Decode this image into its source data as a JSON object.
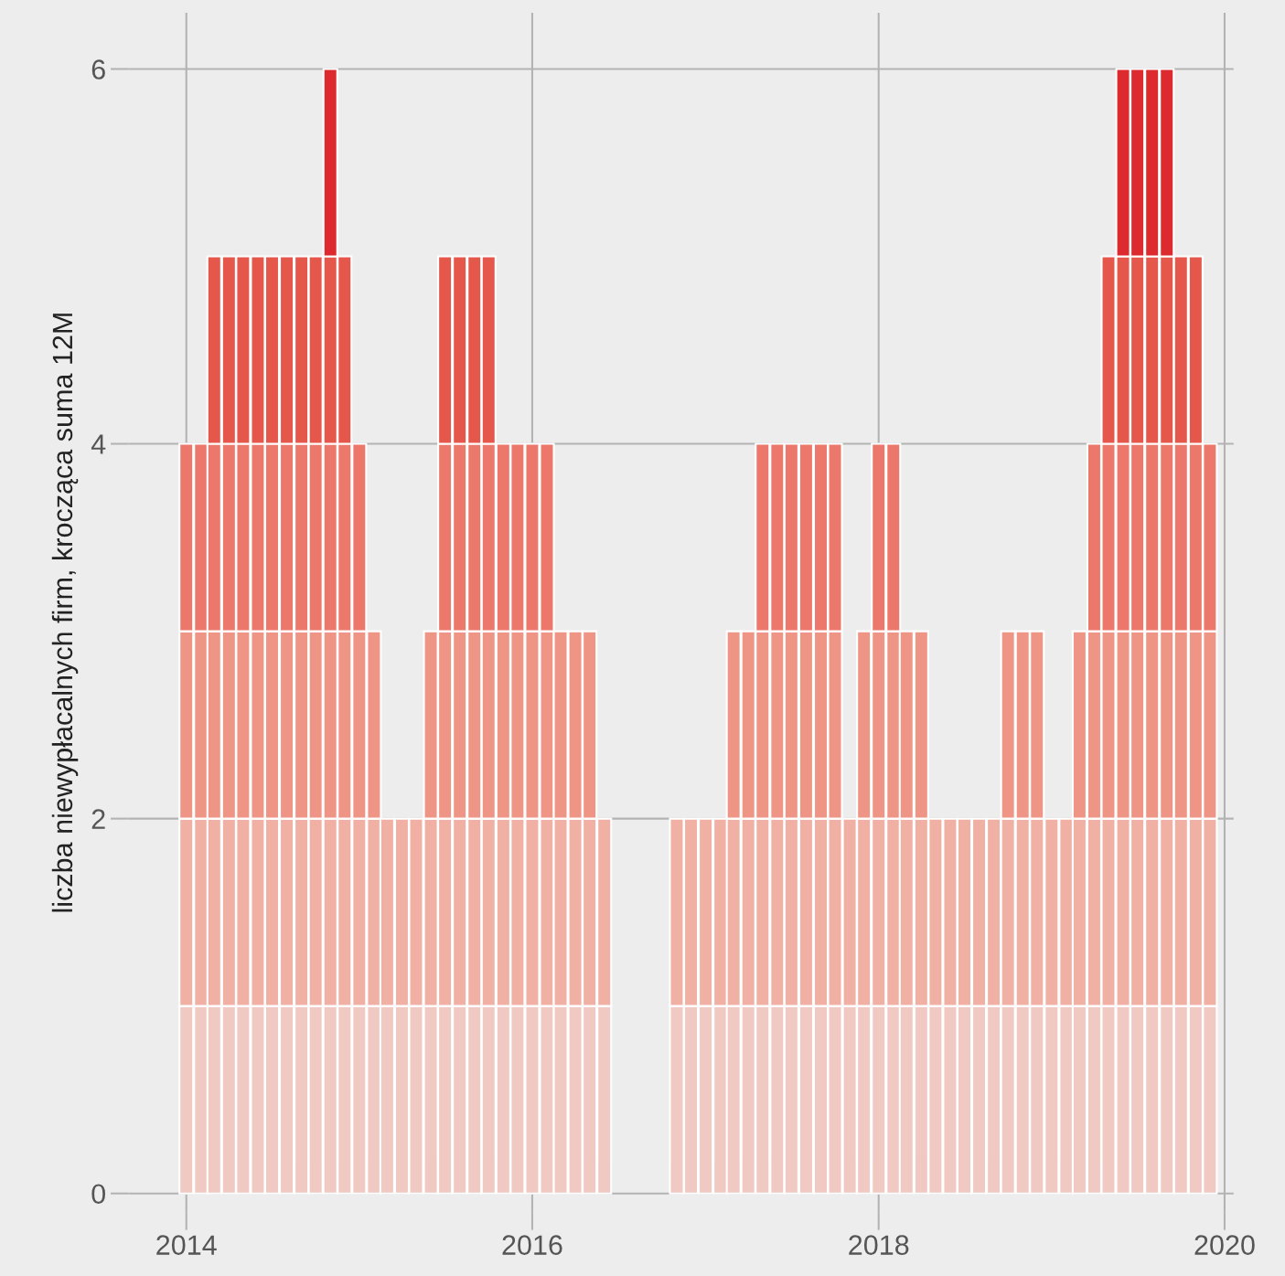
{
  "chart_data": {
    "type": "bar",
    "stacked": true,
    "ylabel": "liczba niewypłacalnych firm, krocząca suma 12M",
    "x": [
      "2014-01",
      "2014-02",
      "2014-03",
      "2014-04",
      "2014-05",
      "2014-06",
      "2014-07",
      "2014-08",
      "2014-09",
      "2014-10",
      "2014-11",
      "2014-12",
      "2015-01",
      "2015-02",
      "2015-03",
      "2015-04",
      "2015-05",
      "2015-06",
      "2015-07",
      "2015-08",
      "2015-09",
      "2015-10",
      "2015-11",
      "2015-12",
      "2016-01",
      "2016-02",
      "2016-03",
      "2016-04",
      "2016-05",
      "2016-06",
      "2016-07",
      "2016-08",
      "2016-09",
      "2016-10",
      "2016-11",
      "2016-12",
      "2017-01",
      "2017-02",
      "2017-03",
      "2017-04",
      "2017-05",
      "2017-06",
      "2017-07",
      "2017-08",
      "2017-09",
      "2017-10",
      "2017-11",
      "2017-12",
      "2018-01",
      "2018-02",
      "2018-03",
      "2018-04",
      "2018-05",
      "2018-06",
      "2018-07",
      "2018-08",
      "2018-09",
      "2018-10",
      "2018-11",
      "2018-12",
      "2019-01",
      "2019-02",
      "2019-03",
      "2019-04",
      "2019-05",
      "2019-06",
      "2019-07",
      "2019-08",
      "2019-09",
      "2019-10",
      "2019-11",
      "2019-12"
    ],
    "series": [
      {
        "color": "#efc9c2",
        "values": [
          1,
          1,
          1,
          1,
          1,
          1,
          1,
          1,
          1,
          1,
          1,
          1,
          1,
          1,
          1,
          1,
          1,
          1,
          1,
          1,
          1,
          1,
          1,
          1,
          1,
          1,
          1,
          1,
          1,
          1,
          null,
          null,
          null,
          null,
          1,
          1,
          1,
          1,
          1,
          1,
          1,
          1,
          1,
          1,
          1,
          1,
          1,
          1,
          1,
          1,
          1,
          1,
          1,
          1,
          1,
          1,
          1,
          1,
          1,
          1,
          1,
          1,
          1,
          1,
          1,
          1,
          1,
          1,
          1,
          1,
          1,
          1
        ]
      },
      {
        "color": "#f0b0a4",
        "values": [
          1,
          1,
          1,
          1,
          1,
          1,
          1,
          1,
          1,
          1,
          1,
          1,
          1,
          1,
          1,
          1,
          1,
          1,
          1,
          1,
          1,
          1,
          1,
          1,
          1,
          1,
          1,
          1,
          1,
          1,
          null,
          null,
          null,
          null,
          1,
          1,
          1,
          1,
          1,
          1,
          1,
          1,
          1,
          1,
          1,
          1,
          1,
          1,
          1,
          1,
          1,
          1,
          1,
          1,
          1,
          1,
          1,
          1,
          1,
          1,
          1,
          1,
          1,
          1,
          1,
          1,
          1,
          1,
          1,
          1,
          1,
          1
        ]
      },
      {
        "color": "#ef9585",
        "values": [
          1,
          1,
          1,
          1,
          1,
          1,
          1,
          1,
          1,
          1,
          1,
          1,
          1,
          1,
          null,
          null,
          null,
          1,
          1,
          1,
          1,
          1,
          1,
          1,
          1,
          1,
          1,
          1,
          1,
          null,
          null,
          null,
          null,
          null,
          null,
          null,
          null,
          null,
          1,
          1,
          1,
          1,
          1,
          1,
          1,
          1,
          null,
          1,
          1,
          1,
          1,
          1,
          null,
          null,
          null,
          null,
          null,
          1,
          1,
          1,
          null,
          null,
          1,
          1,
          1,
          1,
          1,
          1,
          1,
          1,
          1,
          1
        ]
      },
      {
        "color": "#ec786b",
        "values": [
          1,
          1,
          1,
          1,
          1,
          1,
          1,
          1,
          1,
          1,
          1,
          1,
          1,
          null,
          null,
          null,
          null,
          null,
          1,
          1,
          1,
          1,
          1,
          1,
          1,
          1,
          null,
          null,
          null,
          null,
          null,
          null,
          null,
          null,
          null,
          null,
          null,
          null,
          null,
          null,
          1,
          1,
          1,
          1,
          1,
          1,
          null,
          null,
          1,
          1,
          null,
          null,
          null,
          null,
          null,
          null,
          null,
          null,
          null,
          null,
          null,
          null,
          null,
          1,
          1,
          1,
          1,
          1,
          1,
          1,
          1,
          1
        ]
      },
      {
        "color": "#e5574b",
        "values": [
          null,
          null,
          1,
          1,
          1,
          1,
          1,
          1,
          1,
          1,
          1,
          1,
          null,
          null,
          null,
          null,
          null,
          null,
          1,
          1,
          1,
          1,
          null,
          null,
          null,
          null,
          null,
          null,
          null,
          null,
          null,
          null,
          null,
          null,
          null,
          null,
          null,
          null,
          null,
          null,
          null,
          null,
          null,
          null,
          null,
          null,
          null,
          null,
          null,
          null,
          null,
          null,
          null,
          null,
          null,
          null,
          null,
          null,
          null,
          null,
          null,
          null,
          null,
          null,
          1,
          1,
          1,
          1,
          1,
          1,
          1,
          null
        ]
      },
      {
        "color": "#dc2a2e",
        "values": [
          null,
          null,
          null,
          null,
          null,
          null,
          null,
          null,
          null,
          null,
          1,
          null,
          null,
          null,
          null,
          null,
          null,
          null,
          null,
          null,
          null,
          null,
          null,
          null,
          null,
          null,
          null,
          null,
          null,
          null,
          null,
          null,
          null,
          null,
          null,
          null,
          null,
          null,
          null,
          null,
          null,
          null,
          null,
          null,
          null,
          null,
          null,
          null,
          null,
          null,
          null,
          null,
          null,
          null,
          null,
          null,
          null,
          null,
          null,
          null,
          null,
          null,
          null,
          null,
          null,
          1,
          1,
          1,
          1,
          null,
          null,
          null
        ]
      }
    ],
    "xlim": [
      "2013-09-01",
      "2020-01-20"
    ],
    "xticks": [
      {
        "value": "2014-01-01",
        "label": "2014"
      },
      {
        "value": "2016-01-01",
        "label": "2016"
      },
      {
        "value": "2018-01-01",
        "label": "2018"
      },
      {
        "value": "2020-01-01",
        "label": "2020"
      }
    ],
    "ylim": [
      -0.1,
      6.3
    ],
    "yticks": [
      0,
      2,
      4,
      6
    ],
    "grid": true,
    "legend": false
  }
}
